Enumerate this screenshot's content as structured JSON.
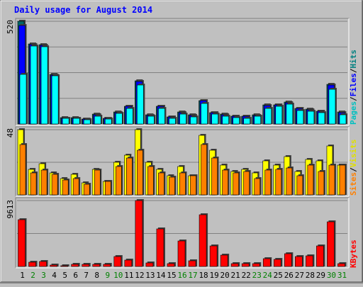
{
  "chart_data": [
    {
      "type": "bar",
      "title": "Daily usage for August 2014",
      "categories": [
        "1",
        "2",
        "3",
        "4",
        "5",
        "6",
        "7",
        "8",
        "9",
        "10",
        "11",
        "12",
        "13",
        "14",
        "15",
        "16",
        "17",
        "18",
        "19",
        "20",
        "21",
        "22",
        "23",
        "24",
        "25",
        "26",
        "27",
        "28",
        "29",
        "30",
        "31"
      ],
      "weekend_days": [
        "2",
        "3",
        "9",
        "10",
        "16",
        "17",
        "23",
        "24",
        "30",
        "31"
      ],
      "ylim": [
        0,
        520
      ],
      "y_max_label": "520",
      "legend": [
        "Pages",
        "Files",
        "Hits"
      ],
      "series": [
        {
          "name": "Hits",
          "color": "#006666",
          "values": [
            520,
            405,
            400,
            250,
            32,
            32,
            25,
            50,
            30,
            60,
            90,
            218,
            45,
            90,
            36,
            60,
            45,
            120,
            58,
            50,
            40,
            40,
            45,
            97,
            97,
            110,
            80,
            75,
            65,
            200,
            60
          ]
        },
        {
          "name": "Files",
          "color": "#0000ff",
          "values": [
            500,
            400,
            398,
            248,
            30,
            30,
            24,
            48,
            29,
            58,
            88,
            215,
            44,
            88,
            35,
            58,
            44,
            118,
            57,
            48,
            38,
            38,
            44,
            95,
            96,
            108,
            78,
            73,
            63,
            198,
            58
          ]
        },
        {
          "name": "Pages",
          "color": "#00ffff",
          "values": [
            250,
            395,
            390,
            245,
            28,
            29,
            22,
            40,
            24,
            53,
            78,
            198,
            38,
            78,
            28,
            50,
            35,
            105,
            50,
            38,
            34,
            28,
            40,
            80,
            88,
            100,
            68,
            63,
            57,
            175,
            45
          ]
        }
      ]
    },
    {
      "type": "bar",
      "ylim": [
        0,
        48
      ],
      "y_max_label": "48",
      "legend": [
        "Sites",
        "Visits"
      ],
      "series": [
        {
          "name": "Visits",
          "color": "#ffff00",
          "values": [
            48,
            19,
            23,
            16,
            12,
            15,
            9,
            19,
            10,
            24,
            29,
            48,
            24,
            19,
            14,
            21,
            14,
            44,
            33,
            22,
            17,
            19,
            16,
            25,
            22,
            28,
            17,
            26,
            25,
            36,
            22
          ]
        },
        {
          "name": "Sites",
          "color": "#ff8000",
          "values": [
            37,
            16,
            18,
            15,
            11,
            12,
            8,
            18,
            10,
            21,
            27,
            33,
            21,
            16,
            13,
            16,
            14,
            37,
            27,
            18,
            16,
            17,
            12,
            18,
            19,
            20,
            14,
            22,
            17,
            22,
            22
          ]
        }
      ]
    },
    {
      "type": "bar",
      "ylim": [
        0,
        9613
      ],
      "y_max_label": "9613",
      "legend": [
        "KBytes"
      ],
      "series": [
        {
          "name": "KBytes",
          "color": "#ff0000",
          "values": [
            6800,
            650,
            750,
            250,
            150,
            300,
            300,
            350,
            350,
            1400,
            950,
            9613,
            550,
            5500,
            450,
            3700,
            850,
            7500,
            3000,
            1700,
            450,
            400,
            450,
            1100,
            1050,
            1900,
            1450,
            1500,
            3000,
            6500,
            450
          ]
        }
      ]
    }
  ]
}
